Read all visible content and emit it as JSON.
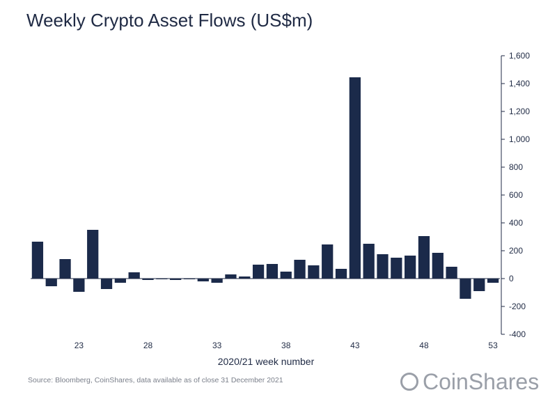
{
  "title": "Weekly Crypto Asset Flows (US$m)",
  "source": "Source: Bloomberg, CoinShares, data available as of close 31 December 2021",
  "brand": "CoinShares",
  "colors": {
    "bar": "#1b2a4a",
    "text": "#1f2a44",
    "axis": "#1f2a44"
  },
  "chart_data": {
    "type": "bar",
    "title": "Weekly Crypto Asset Flows (US$m)",
    "xlabel": "2020/21 week number",
    "ylabel": "",
    "ylim": [
      -400,
      1600
    ],
    "yticks": [
      -400,
      -200,
      0,
      200,
      400,
      600,
      800,
      1000,
      1200,
      1400,
      1600
    ],
    "ytick_labels": [
      "-400",
      "-200",
      "0",
      "200",
      "400",
      "600",
      "800",
      "1,000",
      "1,200",
      "1,400",
      "1,600"
    ],
    "y_axis_side": "right",
    "x": [
      20,
      21,
      22,
      23,
      24,
      25,
      26,
      27,
      28,
      29,
      30,
      31,
      32,
      33,
      34,
      35,
      36,
      37,
      38,
      39,
      40,
      41,
      42,
      43,
      44,
      45,
      46,
      47,
      48,
      49,
      50,
      51,
      52,
      53
    ],
    "xtick_labels": [
      "23",
      "28",
      "33",
      "38",
      "43",
      "48",
      "53"
    ],
    "xtick_values": [
      23,
      28,
      33,
      38,
      43,
      48,
      53
    ],
    "values": [
      265,
      -55,
      140,
      -95,
      350,
      -75,
      -30,
      45,
      -10,
      -5,
      -10,
      -5,
      -20,
      -30,
      30,
      15,
      100,
      105,
      50,
      135,
      95,
      245,
      70,
      1445,
      250,
      175,
      150,
      165,
      305,
      185,
      85,
      -145,
      -90,
      -30
    ],
    "grid": false,
    "legend": "none"
  }
}
